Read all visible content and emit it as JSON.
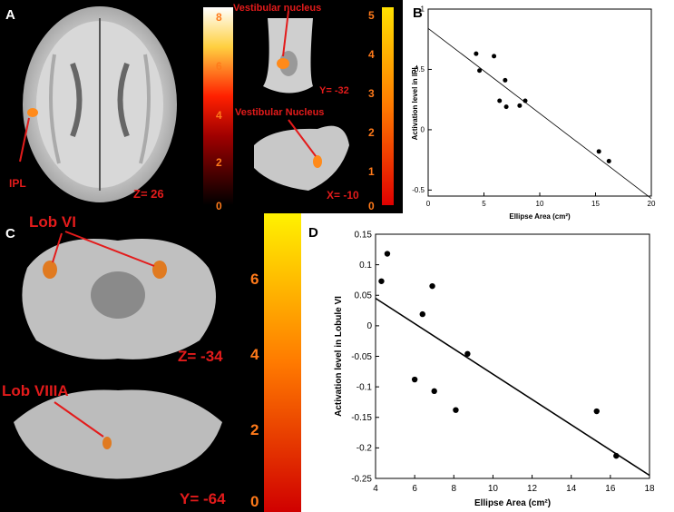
{
  "panel_a": {
    "letter": "A",
    "axial_label": "Z= 26",
    "ipl_label": "IPL",
    "vestibular_top_label": "Vestibular nucleus",
    "vestibular_bottom_label": "Vestibular Nucleus",
    "coronal_label": "Y= -32",
    "sagittal_label": "X= -10",
    "colorbar_ticks": [
      "8",
      "6",
      "4",
      "2",
      "0"
    ],
    "colorbar_ticks_right": [
      "5",
      "4",
      "3",
      "2",
      "1",
      "0"
    ]
  },
  "panel_c": {
    "letter": "C",
    "lob6_label": "Lob VI",
    "lob8_label": "Lob VIIIA",
    "z_label": "Z= -34",
    "y_label": "Y= -64",
    "colorbar_ticks": [
      "6",
      "4",
      "2",
      "0"
    ]
  },
  "chart_data": [
    {
      "type": "scatter",
      "panel": "B",
      "xlabel": "Ellipse Area (cm²)",
      "ylabel": "Activation level in IPL",
      "xlim": [
        0,
        20
      ],
      "ylim": [
        -0.55,
        1.0
      ],
      "xticks": [
        "0",
        "5",
        "10",
        "15",
        "20"
      ],
      "yticks": [
        "1",
        "0.5",
        "0",
        "-0.5"
      ],
      "points": [
        [
          4.3,
          0.63
        ],
        [
          4.6,
          0.49
        ],
        [
          5.9,
          0.61
        ],
        [
          6.4,
          0.24
        ],
        [
          6.9,
          0.41
        ],
        [
          7.0,
          0.19
        ],
        [
          8.2,
          0.2
        ],
        [
          8.7,
          0.24
        ],
        [
          15.3,
          -0.18
        ],
        [
          16.2,
          -0.26
        ]
      ],
      "fit_line": [
        [
          0,
          0.84
        ],
        [
          20,
          -0.57
        ]
      ]
    },
    {
      "type": "scatter",
      "panel": "D",
      "xlabel": "Ellipse Area (cm²)",
      "ylabel": "Activation level in Lobule VI",
      "xlim": [
        4,
        18
      ],
      "ylim": [
        -0.25,
        0.15
      ],
      "xticks": [
        "4",
        "6",
        "8",
        "10",
        "12",
        "14",
        "16",
        "18"
      ],
      "yticks": [
        "0.15",
        "0.1",
        "0.05",
        "0",
        "-0.05",
        "-0.1",
        "-0.15",
        "-0.2",
        "-0.25"
      ],
      "points": [
        [
          4.3,
          0.073
        ],
        [
          4.6,
          0.118
        ],
        [
          6.0,
          -0.088
        ],
        [
          6.4,
          0.019
        ],
        [
          6.9,
          0.065
        ],
        [
          7.0,
          -0.107
        ],
        [
          8.1,
          -0.138
        ],
        [
          8.7,
          -0.046
        ],
        [
          15.3,
          -0.14
        ],
        [
          16.3,
          -0.213
        ]
      ],
      "fit_line": [
        [
          4,
          0.045
        ],
        [
          18,
          -0.245
        ]
      ]
    }
  ]
}
